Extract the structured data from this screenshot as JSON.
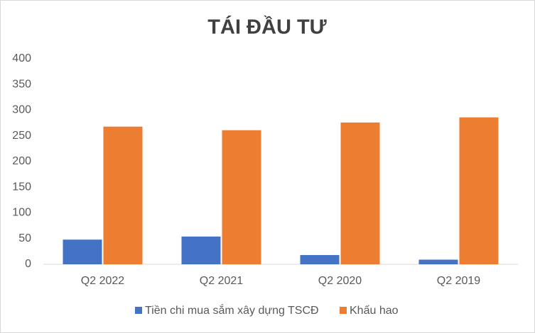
{
  "chart_data": {
    "type": "bar",
    "title": "TÁI ĐẦU TƯ",
    "categories": [
      "Q2 2022",
      "Q2 2021",
      "Q2 2020",
      "Q2 2019"
    ],
    "series": [
      {
        "name": "Tiền chi mua sắm xây dựng TSCĐ",
        "color": "#4472c4",
        "values": [
          48,
          54,
          18,
          9
        ]
      },
      {
        "name": "Khấu hao",
        "color": "#ed7d31",
        "values": [
          268,
          261,
          276,
          286
        ]
      }
    ],
    "ylim": [
      0,
      400
    ],
    "yticks": [
      0,
      50,
      100,
      150,
      200,
      250,
      300,
      350,
      400
    ],
    "grid": false,
    "legend": "bottom"
  }
}
